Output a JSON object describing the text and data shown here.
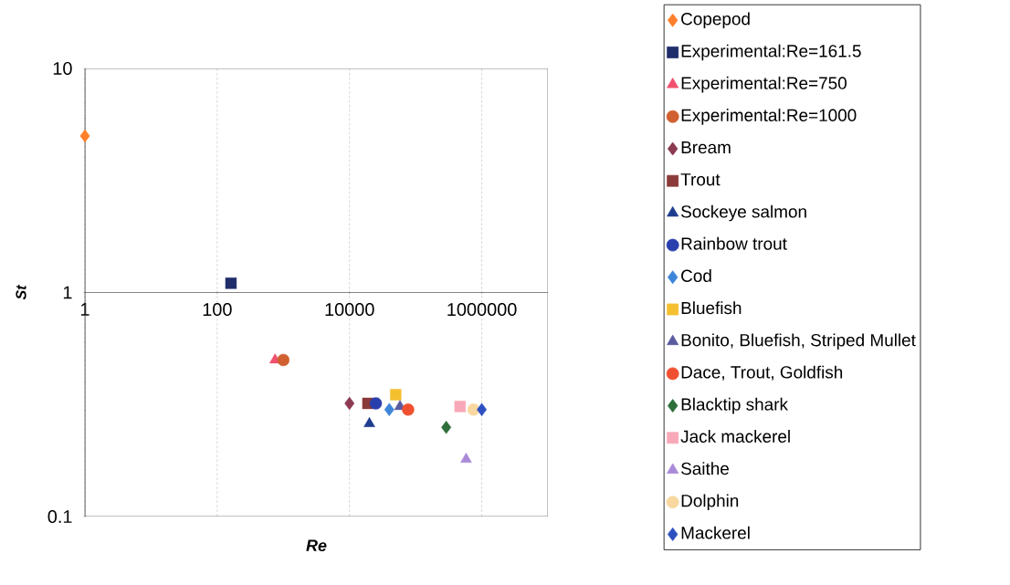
{
  "chart_data": {
    "type": "scatter",
    "xlabel": "Re",
    "ylabel": "St",
    "log": "xy",
    "xlim": [
      1,
      10000000
    ],
    "ylim": [
      0.1,
      10
    ],
    "xticks": [
      1,
      100,
      10000,
      1000000
    ],
    "yticks": [
      0.1,
      1,
      10
    ],
    "grid": "x",
    "legend": "right",
    "series": [
      {
        "name": "Copepod",
        "color": "#ff7f2a",
        "marker": "diamond",
        "x": [
          1
        ],
        "values": [
          5.0
        ]
      },
      {
        "name": "Experimental:Re=161.5",
        "color": "#1f2d6b",
        "marker": "square",
        "x": [
          161.5
        ],
        "values": [
          1.1
        ]
      },
      {
        "name": "Experimental:Re=750",
        "color": "#f0506e",
        "marker": "triangle",
        "x": [
          750
        ],
        "values": [
          0.5
        ]
      },
      {
        "name": "Experimental:Re=1000",
        "color": "#d06030",
        "marker": "circle",
        "x": [
          1000
        ],
        "values": [
          0.5
        ]
      },
      {
        "name": "Bream",
        "color": "#8b3a52",
        "marker": "diamond",
        "x": [
          10000
        ],
        "values": [
          0.32
        ]
      },
      {
        "name": "Trout",
        "color": "#8b3a3a",
        "marker": "square",
        "x": [
          19000
        ],
        "values": [
          0.32
        ]
      },
      {
        "name": "Sockeye salmon",
        "color": "#1f3d8f",
        "marker": "triangle",
        "x": [
          20000
        ],
        "values": [
          0.26
        ]
      },
      {
        "name": "Rainbow trout",
        "color": "#2a3fae",
        "marker": "circle",
        "x": [
          25000
        ],
        "values": [
          0.32
        ]
      },
      {
        "name": "Cod",
        "color": "#3d85d8",
        "marker": "diamond",
        "x": [
          40000
        ],
        "values": [
          0.3
        ]
      },
      {
        "name": "Bluefish",
        "color": "#f5c030",
        "marker": "square",
        "x": [
          50000
        ],
        "values": [
          0.35
        ]
      },
      {
        "name": "Bonito, Bluefish, Striped Mullet",
        "color": "#5a5aa0",
        "marker": "triangle",
        "x": [
          58000
        ],
        "values": [
          0.31
        ]
      },
      {
        "name": "Dace, Trout, Goldfish",
        "color": "#f05030",
        "marker": "circle",
        "x": [
          77000
        ],
        "values": [
          0.3
        ]
      },
      {
        "name": "Blacktip shark",
        "color": "#2d6e3a",
        "marker": "diamond",
        "x": [
          290000
        ],
        "values": [
          0.25
        ]
      },
      {
        "name": "Jack mackerel",
        "color": "#f8a8b8",
        "marker": "square",
        "x": [
          470000
        ],
        "values": [
          0.31
        ]
      },
      {
        "name": "Saithe",
        "color": "#a98ad8",
        "marker": "triangle",
        "x": [
          580000
        ],
        "values": [
          0.18
        ]
      },
      {
        "name": "Dolphin",
        "color": "#f8d8a0",
        "marker": "circle",
        "x": [
          750000
        ],
        "values": [
          0.3
        ]
      },
      {
        "name": "Mackerel",
        "color": "#2e4fc0",
        "marker": "diamond",
        "x": [
          1000000
        ],
        "values": [
          0.3
        ]
      }
    ]
  }
}
